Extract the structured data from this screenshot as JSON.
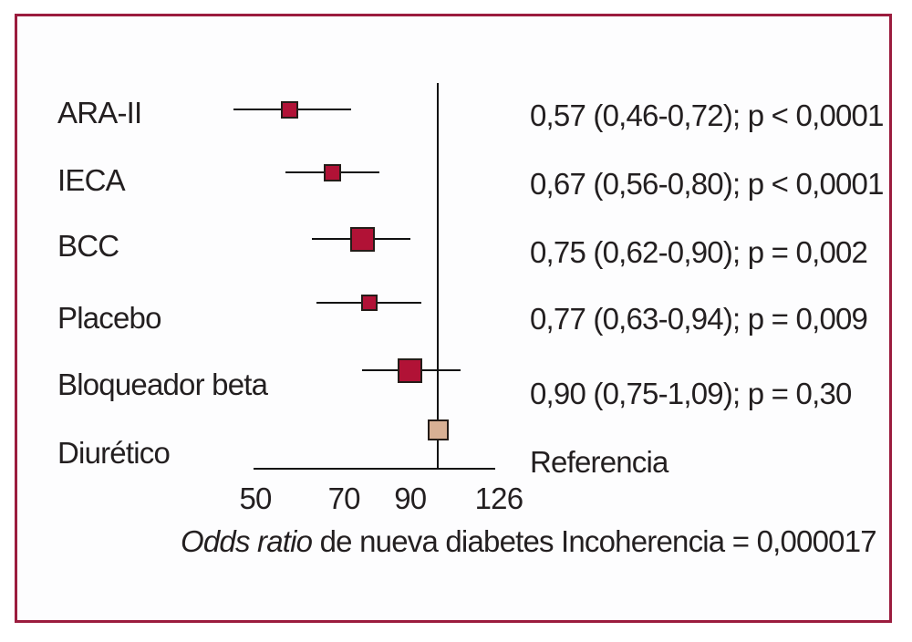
{
  "figure": {
    "border_color": "#9b1c3e",
    "background": "#fdfdfe",
    "marker_color": "#b11236",
    "reference_marker_color": "#d8b094"
  },
  "chart_data": {
    "type": "forest",
    "scale": "log",
    "x_ticks": [
      50,
      70,
      90,
      126
    ],
    "x_tick_labels": [
      "50",
      "70",
      "90",
      "126"
    ],
    "x_range": [
      50,
      126
    ],
    "reference_value": 100,
    "grid": false,
    "xlabel_italic": "Odds ratio",
    "xlabel_rest": " de nueva diabetes",
    "footnote": "Incoherencia = 0,000017",
    "rows": [
      {
        "label": "ARA-II",
        "value": 57,
        "ci_low": 46,
        "ci_high": 72,
        "annotation": "0,57 (0,46-0,72); p < 0,0001",
        "marker_size": 19,
        "marker_color": "#b11236"
      },
      {
        "label": "IECA",
        "value": 67,
        "ci_low": 56,
        "ci_high": 80,
        "annotation": "0,67 (0,56-0,80); p < 0,0001",
        "marker_size": 19,
        "marker_color": "#b11236"
      },
      {
        "label": "BCC",
        "value": 75,
        "ci_low": 62,
        "ci_high": 90,
        "annotation": "0,75 (0,62-0,90); p = 0,002",
        "marker_size": 27,
        "marker_color": "#b11236"
      },
      {
        "label": "Placebo",
        "value": 77,
        "ci_low": 63,
        "ci_high": 94,
        "annotation": "0,77 (0,63-0,94); p = 0,009",
        "marker_size": 18,
        "marker_color": "#b11236"
      },
      {
        "label": "Bloqueador beta",
        "value": 90,
        "ci_low": 75,
        "ci_high": 109,
        "annotation": "0,90 (0,75-1,09); p = 0,30",
        "marker_size": 27,
        "marker_color": "#b11236"
      },
      {
        "label": "Diurético",
        "value": 100,
        "ci_low": null,
        "ci_high": null,
        "annotation": "Referencia",
        "marker_size": 23,
        "marker_color": "#d8b094"
      }
    ]
  }
}
